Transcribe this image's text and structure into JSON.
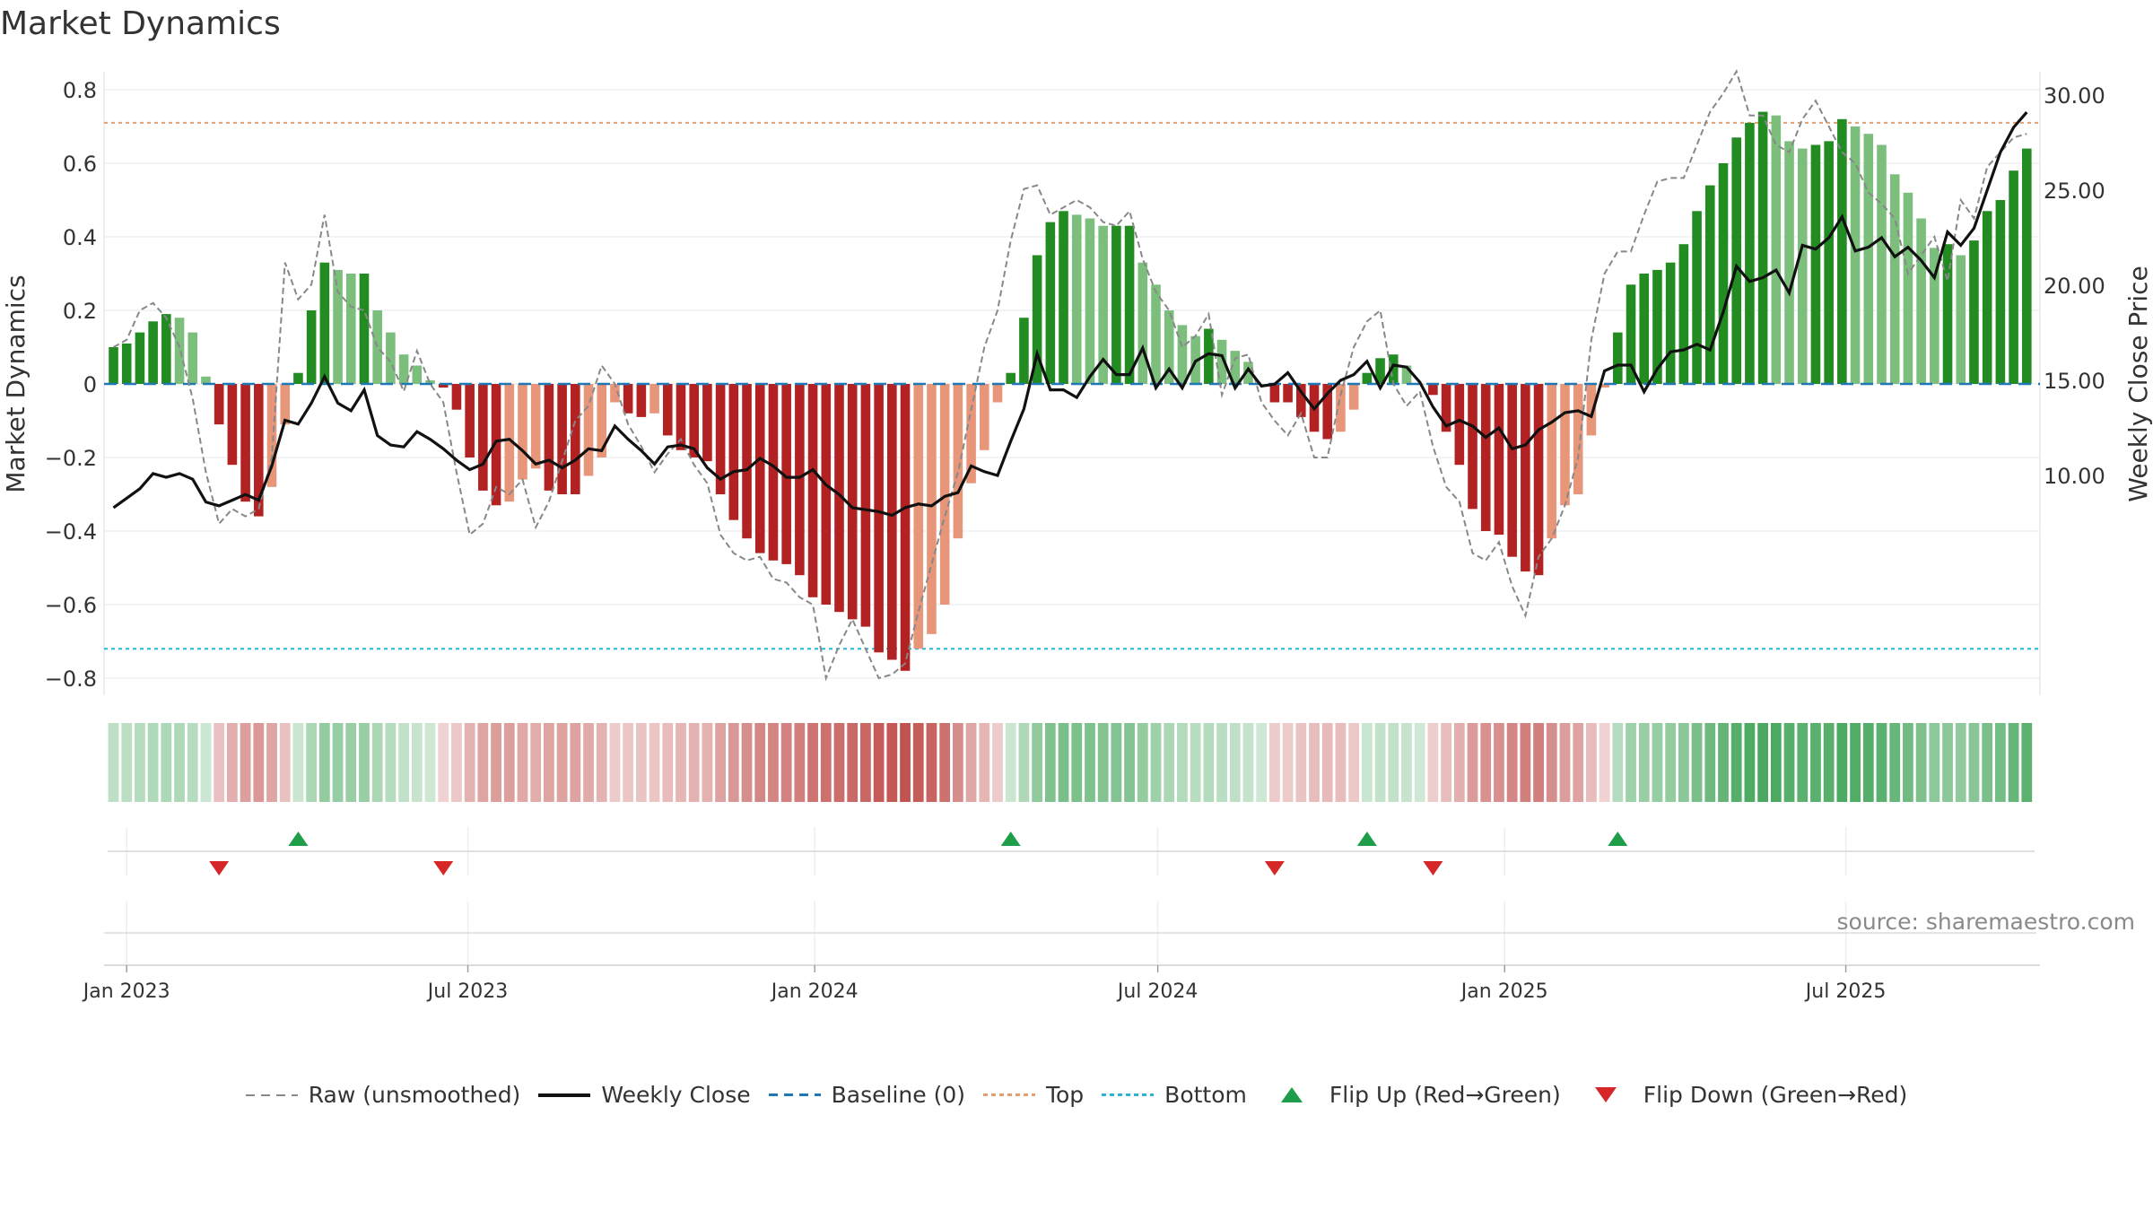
{
  "title": "Market Dynamics",
  "source": "source: sharemaestro.com",
  "colors": {
    "strong_green": "#228B22",
    "light_green": "#7CBE7C",
    "strong_red": "#B22222",
    "light_red": "#E8967A",
    "close_line": "#111111",
    "raw_line": "#888888",
    "baseline": "#1F77B4",
    "top": "#E0A070",
    "bottom": "#29B6D6",
    "flip_up": "#1E9E49",
    "flip_down": "#D62728"
  },
  "legend": [
    {
      "label": "Raw (unsmoothed)",
      "style": "dashed",
      "color": "#888888"
    },
    {
      "label": "Weekly Close",
      "style": "solid",
      "color": "#111111"
    },
    {
      "label": "Baseline (0)",
      "style": "dashed",
      "color": "#1F77B4"
    },
    {
      "label": "Top",
      "style": "dotted",
      "color": "#E0A070"
    },
    {
      "label": "Bottom",
      "style": "dotted",
      "color": "#29B6D6"
    },
    {
      "label": "Flip Up (Red→Green)",
      "style": "tri-up",
      "color": "#1E9E49"
    },
    {
      "label": "Flip Down (Green→Red)",
      "style": "tri-down",
      "color": "#D62728"
    }
  ],
  "chart_data": {
    "type": "bar",
    "ylabel_left": "Market Dynamics",
    "ylabel_right": "Weekly Close Price",
    "y_ticks_left": [
      "0.8",
      "0.6",
      "0.4",
      "0.2",
      "0",
      "−0.2",
      "−0.4",
      "−0.6",
      "−0.8"
    ],
    "y_tick_values_left": [
      0.8,
      0.6,
      0.4,
      0.2,
      0,
      -0.2,
      -0.4,
      -0.6,
      -0.8
    ],
    "y_ticks_right": [
      "30.00",
      "25.00",
      "20.00",
      "15.00",
      "10.00"
    ],
    "y_tick_values_right": [
      30,
      25,
      20,
      15,
      10
    ],
    "ylim_left": [
      -0.88,
      0.84
    ],
    "ylim_right": [
      6.9,
      30.36
    ],
    "x_ticks": [
      "Jan 2023",
      "Jul 2023",
      "Jan 2024",
      "Jul 2024",
      "Jan 2025",
      "Jul 2025"
    ],
    "x_tick_dates": [
      "2023-01-01",
      "2023-07-01",
      "2024-01-01",
      "2024-07-01",
      "2025-01-01",
      "2025-07-01"
    ],
    "x_range": [
      "2022-12-20",
      "2025-10-12"
    ],
    "top_line": 0.71,
    "bottom_line": -0.72,
    "weeks": [
      "2022-12-25",
      "2023-01-01",
      "2023-01-08",
      "2023-01-15",
      "2023-01-22",
      "2023-01-29",
      "2023-02-05",
      "2023-02-12",
      "2023-02-19",
      "2023-02-26",
      "2023-03-05",
      "2023-03-12",
      "2023-03-19",
      "2023-03-26",
      "2023-04-02",
      "2023-04-09",
      "2023-04-16",
      "2023-04-23",
      "2023-04-30",
      "2023-05-07",
      "2023-05-14",
      "2023-05-21",
      "2023-05-28",
      "2023-06-04",
      "2023-06-11",
      "2023-06-18",
      "2023-06-25",
      "2023-07-02",
      "2023-07-09",
      "2023-07-16",
      "2023-07-23",
      "2023-07-30",
      "2023-08-06",
      "2023-08-13",
      "2023-08-20",
      "2023-08-27",
      "2023-09-03",
      "2023-09-10",
      "2023-09-17",
      "2023-09-24",
      "2023-10-01",
      "2023-10-08",
      "2023-10-15",
      "2023-10-22",
      "2023-10-29",
      "2023-11-05",
      "2023-11-12",
      "2023-11-19",
      "2023-11-26",
      "2023-12-03",
      "2023-12-10",
      "2023-12-17",
      "2023-12-24",
      "2023-12-31",
      "2024-01-07",
      "2024-01-14",
      "2024-01-21",
      "2024-01-28",
      "2024-02-04",
      "2024-02-11",
      "2024-02-18",
      "2024-02-25",
      "2024-03-03",
      "2024-03-10",
      "2024-03-17",
      "2024-03-24",
      "2024-03-31",
      "2024-04-07",
      "2024-04-14",
      "2024-04-21",
      "2024-04-28",
      "2024-05-05",
      "2024-05-12",
      "2024-05-19",
      "2024-05-26",
      "2024-06-02",
      "2024-06-09",
      "2024-06-16",
      "2024-06-23",
      "2024-06-30",
      "2024-07-07",
      "2024-07-14",
      "2024-07-21",
      "2024-07-28",
      "2024-08-04",
      "2024-08-11",
      "2024-08-18",
      "2024-08-25",
      "2024-09-01",
      "2024-09-08",
      "2024-09-15",
      "2024-09-22",
      "2024-09-29",
      "2024-10-06",
      "2024-10-13",
      "2024-10-20",
      "2024-10-27",
      "2024-11-03",
      "2024-11-10",
      "2024-11-17",
      "2024-11-24",
      "2024-12-01",
      "2024-12-08",
      "2024-12-15",
      "2024-12-22",
      "2024-12-29",
      "2025-01-05",
      "2025-01-12",
      "2025-01-19",
      "2025-01-26",
      "2025-02-02",
      "2025-02-09",
      "2025-02-16",
      "2025-02-23",
      "2025-03-02",
      "2025-03-09",
      "2025-03-16",
      "2025-03-23",
      "2025-03-30",
      "2025-04-06",
      "2025-04-13",
      "2025-04-20",
      "2025-04-27",
      "2025-05-04",
      "2025-05-11",
      "2025-05-18",
      "2025-05-25",
      "2025-06-01",
      "2025-06-08",
      "2025-06-15",
      "2025-06-22",
      "2025-06-29",
      "2025-07-06",
      "2025-07-13",
      "2025-07-20",
      "2025-07-27",
      "2025-08-03",
      "2025-08-10",
      "2025-08-17",
      "2025-08-24",
      "2025-08-31",
      "2025-09-07",
      "2025-09-14",
      "2025-09-21",
      "2025-09-28",
      "2025-10-05"
    ],
    "dynamics": [
      0.1,
      0.11,
      0.14,
      0.17,
      0.19,
      0.18,
      0.14,
      0.02,
      -0.11,
      -0.22,
      -0.32,
      -0.36,
      -0.28,
      -0.11,
      0.03,
      0.2,
      0.33,
      0.31,
      0.3,
      0.3,
      0.2,
      0.14,
      0.08,
      0.05,
      0.01,
      -0.01,
      -0.07,
      -0.2,
      -0.29,
      -0.33,
      -0.32,
      -0.26,
      -0.23,
      -0.29,
      -0.3,
      -0.3,
      -0.25,
      -0.2,
      -0.05,
      -0.08,
      -0.09,
      -0.08,
      -0.14,
      -0.18,
      -0.2,
      -0.21,
      -0.3,
      -0.37,
      -0.42,
      -0.46,
      -0.48,
      -0.49,
      -0.52,
      -0.58,
      -0.6,
      -0.62,
      -0.64,
      -0.66,
      -0.73,
      -0.75,
      -0.78,
      -0.72,
      -0.68,
      -0.6,
      -0.42,
      -0.27,
      -0.18,
      -0.05,
      0.03,
      0.18,
      0.35,
      0.44,
      0.47,
      0.46,
      0.45,
      0.43,
      0.43,
      0.43,
      0.33,
      0.27,
      0.2,
      0.16,
      0.13,
      0.15,
      0.12,
      0.09,
      0.06,
      0.0,
      -0.05,
      -0.05,
      -0.09,
      -0.13,
      -0.15,
      -0.13,
      -0.07,
      0.03,
      0.07,
      0.08,
      0.05,
      0.0,
      -0.03,
      -0.13,
      -0.22,
      -0.34,
      -0.4,
      -0.41,
      -0.47,
      -0.51,
      -0.52,
      -0.42,
      -0.33,
      -0.3,
      -0.14,
      -0.01,
      0.14,
      0.27,
      0.3,
      0.31,
      0.33,
      0.38,
      0.47,
      0.54,
      0.6,
      0.67,
      0.71,
      0.74,
      0.73,
      0.66,
      0.64,
      0.65,
      0.66,
      0.72,
      0.7,
      0.68,
      0.65,
      0.57,
      0.52,
      0.45,
      0.37,
      0.38,
      0.35,
      0.39,
      0.47,
      0.5,
      0.58,
      0.64
    ],
    "raw": [
      0.1,
      0.12,
      0.2,
      0.22,
      0.18,
      0.1,
      -0.04,
      -0.24,
      -0.38,
      -0.34,
      -0.36,
      -0.34,
      -0.2,
      0.33,
      0.23,
      0.27,
      0.46,
      0.25,
      0.21,
      0.2,
      0.1,
      0.06,
      -0.02,
      0.09,
      0.0,
      -0.05,
      -0.24,
      -0.41,
      -0.38,
      -0.28,
      -0.3,
      -0.26,
      -0.39,
      -0.32,
      -0.21,
      -0.1,
      -0.06,
      0.05,
      0.0,
      -0.11,
      -0.17,
      -0.24,
      -0.19,
      -0.15,
      -0.22,
      -0.27,
      -0.41,
      -0.46,
      -0.48,
      -0.47,
      -0.53,
      -0.54,
      -0.58,
      -0.6,
      -0.8,
      -0.71,
      -0.64,
      -0.72,
      -0.8,
      -0.79,
      -0.76,
      -0.62,
      -0.49,
      -0.36,
      -0.24,
      -0.07,
      0.1,
      0.2,
      0.39,
      0.53,
      0.54,
      0.46,
      0.48,
      0.5,
      0.48,
      0.44,
      0.43,
      0.47,
      0.34,
      0.25,
      0.2,
      0.1,
      0.13,
      0.19,
      -0.03,
      0.07,
      0.08,
      -0.05,
      -0.1,
      -0.14,
      -0.08,
      -0.2,
      -0.2,
      -0.03,
      0.1,
      0.17,
      0.2,
      0.0,
      -0.06,
      -0.02,
      -0.17,
      -0.28,
      -0.32,
      -0.46,
      -0.48,
      -0.43,
      -0.55,
      -0.63,
      -0.47,
      -0.42,
      -0.33,
      -0.2,
      0.12,
      0.3,
      0.36,
      0.36,
      0.46,
      0.55,
      0.56,
      0.56,
      0.65,
      0.74,
      0.79,
      0.85,
      0.73,
      0.73,
      0.65,
      0.63,
      0.72,
      0.77,
      0.7,
      0.63,
      0.6,
      0.52,
      0.49,
      0.45,
      0.3,
      0.35,
      0.4,
      0.28,
      0.5,
      0.45,
      0.59,
      0.63,
      0.67,
      0.68
    ],
    "weekly_close": [
      8.3,
      8.8,
      9.3,
      10.1,
      9.9,
      10.1,
      9.8,
      8.6,
      8.4,
      8.7,
      9.0,
      8.7,
      10.5,
      12.9,
      12.7,
      13.8,
      15.2,
      13.8,
      13.4,
      14.5,
      12.1,
      11.6,
      11.5,
      12.3,
      11.9,
      11.4,
      10.8,
      10.3,
      10.6,
      11.8,
      11.9,
      11.3,
      10.6,
      10.8,
      10.4,
      10.8,
      11.4,
      11.3,
      12.6,
      11.9,
      11.3,
      10.6,
      11.5,
      11.6,
      11.4,
      10.4,
      9.8,
      10.2,
      10.3,
      10.9,
      10.5,
      9.9,
      9.9,
      10.3,
      9.5,
      9.0,
      8.3,
      8.2,
      8.1,
      7.9,
      8.3,
      8.5,
      8.4,
      8.9,
      9.1,
      10.5,
      10.2,
      10.0,
      11.8,
      13.5,
      16.4,
      14.5,
      14.5,
      14.1,
      15.2,
      16.1,
      15.3,
      15.3,
      16.7,
      14.6,
      15.6,
      14.6,
      16.0,
      16.4,
      16.3,
      14.6,
      15.6,
      14.7,
      14.8,
      15.4,
      14.4,
      13.5,
      14.3,
      15.0,
      15.3,
      16.0,
      14.6,
      15.8,
      15.7,
      14.9,
      13.6,
      12.6,
      12.9,
      12.6,
      12.0,
      12.5,
      11.4,
      11.6,
      12.4,
      12.8,
      13.3,
      13.4,
      13.1,
      15.5,
      15.8,
      15.8,
      14.4,
      15.6,
      16.5,
      16.6,
      16.9,
      16.6,
      18.6,
      21.0,
      20.2,
      20.4,
      20.8,
      19.6,
      22.1,
      21.9,
      22.5,
      23.6,
      21.8,
      22.0,
      22.5,
      21.5,
      22.0,
      21.3,
      20.4,
      22.8,
      22.1,
      23.0,
      25.0,
      27.0,
      28.3,
      29.1
    ]
  }
}
